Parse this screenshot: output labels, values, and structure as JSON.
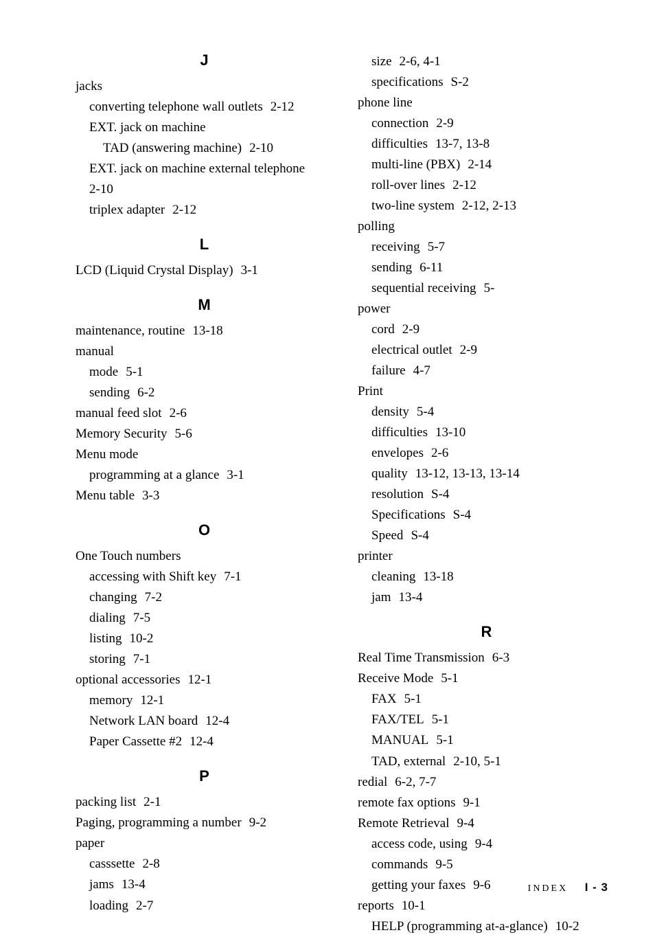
{
  "left": {
    "sections": [
      {
        "letter": "J",
        "entries": [
          {
            "lvl": 0,
            "text": "jacks"
          },
          {
            "lvl": 1,
            "text": "converting telephone wall outlets",
            "ref": "2-12"
          },
          {
            "lvl": 1,
            "text": "EXT. jack on machine"
          },
          {
            "lvl": 2,
            "text": "TAD (answering machine)",
            "ref": "2-10"
          },
          {
            "lvl": 1,
            "text": "EXT. jack on machine external telephone"
          },
          {
            "lvl": 3,
            "text": "2-10"
          },
          {
            "lvl": 1,
            "text": "triplex adapter",
            "ref": "2-12"
          }
        ]
      },
      {
        "letter": "L",
        "entries": [
          {
            "lvl": 0,
            "text": "LCD (Liquid Crystal Display)",
            "ref": "3-1"
          }
        ]
      },
      {
        "letter": "M",
        "entries": [
          {
            "lvl": 0,
            "text": "maintenance, routine",
            "ref": "13-18"
          },
          {
            "lvl": 0,
            "text": "manual"
          },
          {
            "lvl": 1,
            "text": "mode",
            "ref": "5-1"
          },
          {
            "lvl": 1,
            "text": "sending",
            "ref": "6-2"
          },
          {
            "lvl": 0,
            "text": "manual feed slot",
            "ref": "2-6"
          },
          {
            "lvl": 0,
            "text": "Memory Security",
            "ref": "5-6"
          },
          {
            "lvl": 0,
            "text": "Menu mode"
          },
          {
            "lvl": 1,
            "text": "programming at a glance",
            "ref": "3-1"
          },
          {
            "lvl": 0,
            "text": "Menu table",
            "ref": "3-3"
          }
        ]
      },
      {
        "letter": "O",
        "entries": [
          {
            "lvl": 0,
            "text": "One Touch numbers"
          },
          {
            "lvl": 1,
            "text": "accessing with Shift key",
            "ref": "7-1"
          },
          {
            "lvl": 1,
            "text": "changing",
            "ref": "7-2"
          },
          {
            "lvl": 1,
            "text": "dialing",
            "ref": "7-5"
          },
          {
            "lvl": 1,
            "text": "listing",
            "ref": "10-2"
          },
          {
            "lvl": 1,
            "text": "storing",
            "ref": "7-1"
          },
          {
            "lvl": 0,
            "text": "optional accessories",
            "ref": "12-1"
          },
          {
            "lvl": 1,
            "text": "memory",
            "ref": "12-1"
          },
          {
            "lvl": 1,
            "text": "Network LAN board",
            "ref": "12-4"
          },
          {
            "lvl": 1,
            "text": "Paper Cassette #2",
            "ref": "12-4"
          }
        ]
      },
      {
        "letter": "P",
        "entries": [
          {
            "lvl": 0,
            "text": "packing list",
            "ref": "2-1"
          },
          {
            "lvl": 0,
            "text": "Paging, programming a number",
            "ref": "9-2"
          },
          {
            "lvl": 0,
            "text": "paper"
          },
          {
            "lvl": 1,
            "text": "casssette",
            "ref": "2-8"
          },
          {
            "lvl": 1,
            "text": "jams",
            "ref": "13-4"
          },
          {
            "lvl": 1,
            "text": "loading",
            "ref": "2-7"
          }
        ]
      }
    ]
  },
  "right": {
    "sections": [
      {
        "letter": "",
        "entries": [
          {
            "lvl": 1,
            "text": "size",
            "ref": "2-6,   4-1"
          },
          {
            "lvl": 1,
            "text": "specifications",
            "ref": "S-2"
          },
          {
            "lvl": 0,
            "text": "phone line"
          },
          {
            "lvl": 1,
            "text": "connection",
            "ref": "2-9"
          },
          {
            "lvl": 1,
            "text": "difficulties",
            "ref": "13-7,   13-8"
          },
          {
            "lvl": 1,
            "text": "multi-line (PBX)",
            "ref": "2-14"
          },
          {
            "lvl": 1,
            "text": "roll-over lines",
            "ref": "2-12"
          },
          {
            "lvl": 1,
            "text": "two-line system",
            "ref": "2-12,   2-13"
          },
          {
            "lvl": 0,
            "text": "polling"
          },
          {
            "lvl": 1,
            "text": "receiving",
            "ref": "5-7"
          },
          {
            "lvl": 1,
            "text": "sending",
            "ref": "6-11"
          },
          {
            "lvl": 1,
            "text": "sequential receiving",
            "ref": "5-"
          },
          {
            "lvl": 0,
            "text": "power"
          },
          {
            "lvl": 1,
            "text": "cord",
            "ref": "2-9"
          },
          {
            "lvl": 1,
            "text": "electrical outlet",
            "ref": "2-9"
          },
          {
            "lvl": 1,
            "text": "failure",
            "ref": "4-7"
          },
          {
            "lvl": 0,
            "text": "Print"
          },
          {
            "lvl": 1,
            "text": "density",
            "ref": "5-4"
          },
          {
            "lvl": 1,
            "text": "difficulties",
            "ref": "13-10"
          },
          {
            "lvl": 1,
            "text": "envelopes",
            "ref": "2-6"
          },
          {
            "lvl": 1,
            "text": "quality",
            "ref": "13-12,   13-13,   13-14"
          },
          {
            "lvl": 1,
            "text": "resolution",
            "ref": "S-4"
          },
          {
            "lvl": 1,
            "text": "Specifications",
            "ref": "S-4"
          },
          {
            "lvl": 1,
            "text": "Speed",
            "ref": "S-4"
          },
          {
            "lvl": 0,
            "text": "printer"
          },
          {
            "lvl": 1,
            "text": "cleaning",
            "ref": "13-18"
          },
          {
            "lvl": 1,
            "text": "jam",
            "ref": "13-4"
          }
        ]
      },
      {
        "letter": "R",
        "entries": [
          {
            "lvl": 0,
            "text": "Real Time Transmission",
            "ref": "6-3"
          },
          {
            "lvl": 0,
            "text": "Receive Mode",
            "ref": "5-1"
          },
          {
            "lvl": 1,
            "text": "FAX",
            "ref": "5-1"
          },
          {
            "lvl": 1,
            "text": "FAX/TEL",
            "ref": "5-1"
          },
          {
            "lvl": 1,
            "text": "MANUAL",
            "ref": "5-1"
          },
          {
            "lvl": 1,
            "text": "TAD, external",
            "ref": "2-10,   5-1"
          },
          {
            "lvl": 0,
            "text": "redial",
            "ref": "6-2,   7-7"
          },
          {
            "lvl": 0,
            "text": "remote fax options",
            "ref": "9-1"
          },
          {
            "lvl": 0,
            "text": "Remote Retrieval",
            "ref": "9-4"
          },
          {
            "lvl": 1,
            "text": "access code, using",
            "ref": "9-4"
          },
          {
            "lvl": 1,
            "text": "commands",
            "ref": "9-5"
          },
          {
            "lvl": 1,
            "text": "getting your faxes",
            "ref": "9-6"
          },
          {
            "lvl": 0,
            "text": "reports",
            "ref": "10-1"
          },
          {
            "lvl": 1,
            "text": "HELP (programming at-a-glance)",
            "ref": "10-2"
          }
        ]
      }
    ]
  },
  "footer": {
    "label": "INDEX",
    "page": "I - 3"
  }
}
